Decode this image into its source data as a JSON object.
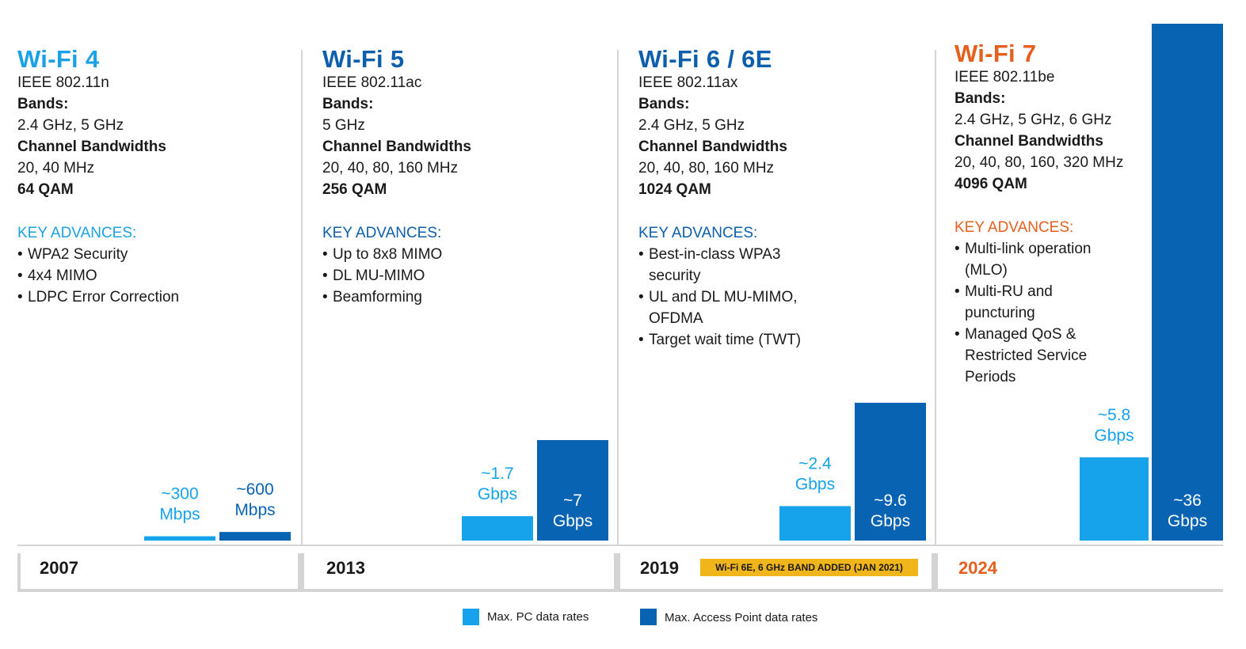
{
  "colors": {
    "pc": "#16a3ec",
    "ap": "#0863b3",
    "wifi4": "#1ba1e6",
    "blue": "#0d5fab",
    "orange": "#e5601c",
    "badge": "#f1b51c"
  },
  "generations": [
    {
      "name": "Wi-Fi 4",
      "standard": "IEEE 802.11n",
      "bands_label": "Bands:",
      "bands": "2.4 GHz, 5 GHz",
      "bw_label": "Channel Bandwidths",
      "bandwidths": "20, 40 MHz",
      "qam": "64 QAM",
      "advances_title": "KEY ADVANCES:",
      "advances": [
        "WPA2 Security",
        "4x4 MIMO",
        "LDPC Error Correction"
      ],
      "year": "2007"
    },
    {
      "name": "Wi-Fi 5",
      "standard": "IEEE 802.11ac",
      "bands_label": "Bands:",
      "bands": "5 GHz",
      "bw_label": "Channel Bandwidths",
      "bandwidths": "20, 40, 80, 160 MHz",
      "qam": "256 QAM",
      "advances_title": "KEY ADVANCES:",
      "advances": [
        "Up to 8x8 MIMO",
        "DL MU-MIMO",
        "Beamforming"
      ],
      "year": "2013"
    },
    {
      "name": "Wi-Fi 6 / 6E",
      "standard": "IEEE 802.11ax",
      "bands_label": "Bands:",
      "bands": "2.4 GHz, 5 GHz",
      "bw_label": "Channel Bandwidths",
      "bandwidths": "20, 40, 80, 160 MHz",
      "qam": "1024 QAM",
      "advances_title": "KEY ADVANCES:",
      "advances": [
        "Best-in-class WPA3 security",
        "UL and DL MU-MIMO, OFDMA",
        "Target wait time (TWT)"
      ],
      "year": "2019",
      "badge": "Wi-Fi 6E, 6 GHz BAND ADDED  (JAN 2021)"
    },
    {
      "name": "Wi-Fi 7",
      "standard": "IEEE 802.11be",
      "bands_label": "Bands:",
      "bands": "2.4 GHz, 5 GHz, 6 GHz",
      "bw_label": "Channel Bandwidths",
      "bandwidths": "20, 40, 80, 160, 320 MHz",
      "qam": "4096 QAM",
      "advances_title": "KEY ADVANCES:",
      "advances": [
        "Multi-link operation (MLO)",
        "Multi-RU and puncturing",
        "Managed QoS & Restricted Service Periods"
      ],
      "year": "2024"
    }
  ],
  "legend": {
    "pc": "Max. PC data rates",
    "ap": "Max. Access Point data rates"
  },
  "chart_data": {
    "type": "bar",
    "categories": [
      "2007",
      "2013",
      "2019",
      "2024"
    ],
    "unit": "Gbps",
    "series": [
      {
        "name": "Max. PC data rates",
        "values": [
          0.3,
          1.7,
          2.4,
          5.8
        ],
        "labels": [
          "~300 Mbps",
          "~1.7 Gbps",
          "~2.4 Gbps",
          "~5.8 Gbps"
        ]
      },
      {
        "name": "Max. Access Point data rates",
        "values": [
          0.6,
          7,
          9.6,
          36
        ],
        "labels": [
          "~600 Mbps",
          "~7 Gbps",
          "~9.6 Gbps",
          "~36 Gbps"
        ]
      }
    ],
    "ylim": [
      0,
      36
    ]
  }
}
